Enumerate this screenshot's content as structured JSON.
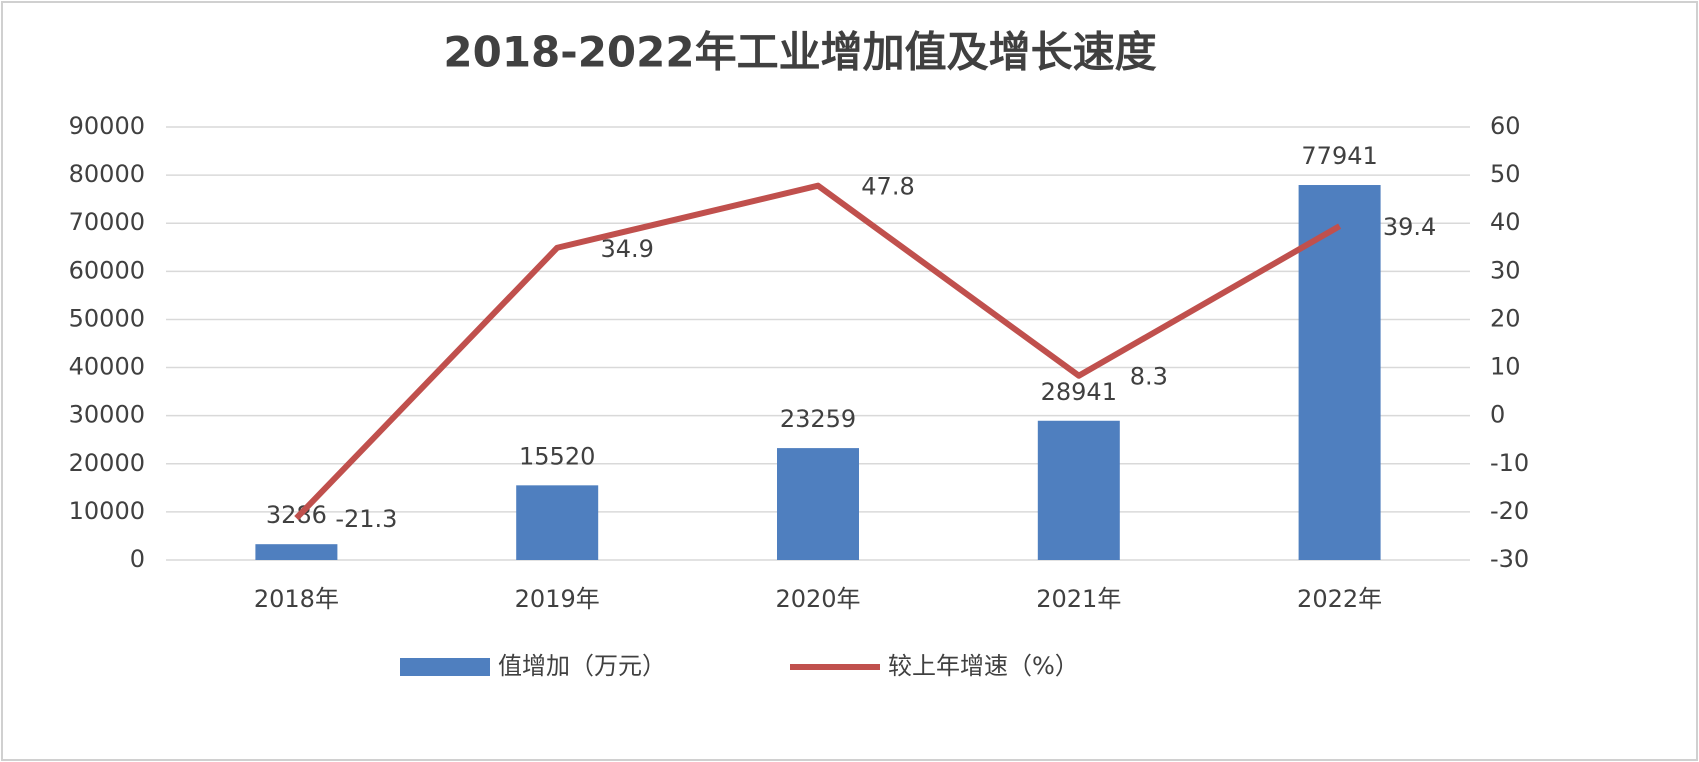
{
  "chart_data": {
    "type": "bar-line",
    "title": "2018-2022年工业增加值及增长速度",
    "categories": [
      "2018年",
      "2019年",
      "2020年",
      "2021年",
      "2022年"
    ],
    "series": [
      {
        "name": "值增加（万元）",
        "color": "#4f7fbf",
        "type": "bar",
        "values": [
          3286,
          15520,
          23259,
          28941,
          77941
        ]
      },
      {
        "name": "较上年增速（%）",
        "color": "#c0504d",
        "type": "line",
        "axis": "y2",
        "values": [
          -21.3,
          34.9,
          47.8,
          8.3,
          39.4
        ]
      }
    ],
    "ylim": [
      0,
      90000
    ],
    "yticks": [
      0,
      10000,
      20000,
      30000,
      40000,
      50000,
      60000,
      70000,
      80000,
      90000
    ],
    "y2lim": [
      -30,
      60
    ],
    "y2ticks": [
      -30,
      -20,
      -10,
      0,
      10,
      20,
      30,
      40,
      50,
      60
    ],
    "grid": true,
    "legend": "bottom"
  }
}
